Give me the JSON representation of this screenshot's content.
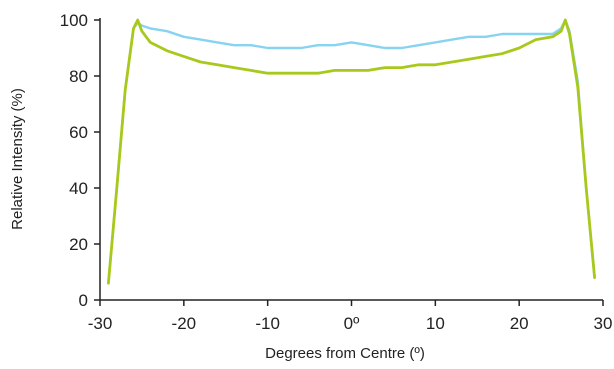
{
  "chart_data": {
    "type": "line",
    "title": "",
    "xlabel": "Degrees from Centre (º)",
    "ylabel": "Relative Intensity (%)",
    "xlim": [
      -30,
      30
    ],
    "ylim": [
      0,
      100
    ],
    "x_ticks": [
      -30,
      -20,
      -10,
      0,
      10,
      20,
      30
    ],
    "x_tick_labels": [
      "-30",
      "-20",
      "-10",
      "0º",
      "10",
      "20",
      "30"
    ],
    "y_ticks": [
      0,
      20,
      40,
      60,
      80,
      100
    ],
    "y_tick_labels": [
      "0",
      "20",
      "40",
      "60",
      "80",
      "100"
    ],
    "grid": false,
    "legend": "none",
    "series": [
      {
        "color": "#87d3f0",
        "x": [
          -29.0,
          -28.0,
          -27.0,
          -26.0,
          -25.5,
          -25.0,
          -24.0,
          -22.0,
          -20.0,
          -18.0,
          -16.0,
          -14.0,
          -12.0,
          -10.0,
          -8.0,
          -6.0,
          -4.0,
          -2.0,
          0.0,
          2.0,
          4.0,
          6.0,
          8.0,
          10.0,
          12.0,
          14.0,
          16.0,
          18.0,
          20.0,
          22.0,
          24.0,
          25.0,
          25.5,
          26.0,
          27.0,
          28.0,
          29.0
        ],
        "y": [
          6,
          40,
          75,
          97,
          99,
          98,
          97,
          96,
          94,
          93,
          92,
          91,
          91,
          90,
          90,
          90,
          91,
          91,
          92,
          91,
          90,
          90,
          91,
          92,
          93,
          94,
          94,
          95,
          95,
          95,
          95,
          97,
          100,
          96,
          78,
          40,
          8
        ]
      },
      {
        "color": "#a8c91c",
        "x": [
          -29.0,
          -28.0,
          -27.0,
          -26.0,
          -25.5,
          -25.0,
          -24.0,
          -22.0,
          -20.0,
          -18.0,
          -16.0,
          -14.0,
          -12.0,
          -10.0,
          -8.0,
          -6.0,
          -4.0,
          -2.0,
          0.0,
          2.0,
          4.0,
          6.0,
          8.0,
          10.0,
          12.0,
          14.0,
          16.0,
          18.0,
          20.0,
          22.0,
          24.0,
          25.0,
          25.5,
          26.0,
          27.0,
          28.0,
          29.0
        ],
        "y": [
          6,
          40,
          75,
          97,
          100,
          96,
          92,
          89,
          87,
          85,
          84,
          83,
          82,
          81,
          81,
          81,
          81,
          82,
          82,
          82,
          83,
          83,
          84,
          84,
          85,
          86,
          87,
          88,
          90,
          93,
          94,
          96,
          100,
          95,
          76,
          40,
          8
        ]
      }
    ]
  },
  "colors": {
    "axis": "#222222"
  }
}
